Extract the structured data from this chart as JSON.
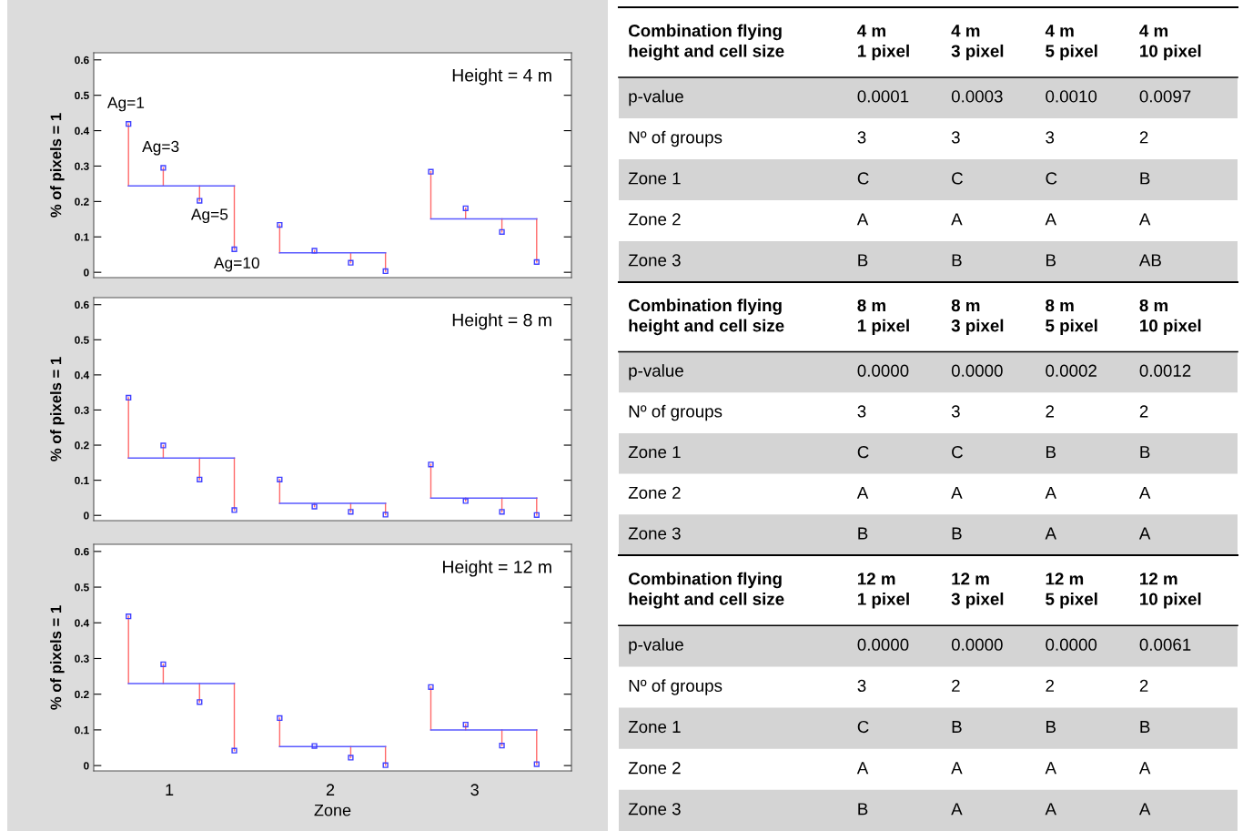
{
  "chart_data": [
    {
      "type": "line",
      "ylabel": "% of pixels = 1",
      "xlim": [
        0.42,
        3.58
      ],
      "ylim": [
        -0.015,
        0.62
      ],
      "yticks": [
        0,
        0.1,
        0.2,
        0.3,
        0.4,
        0.5,
        0.6
      ],
      "tick_labels": "y",
      "grid": false,
      "legend": false,
      "annotations": [
        "Height = 4 m",
        {
          "text": "Ag=1",
          "x": 0.65,
          "y": 0.419
        },
        {
          "text": "Ag=3",
          "x": 0.88,
          "y": 0.295
        },
        {
          "text": "Ag=5",
          "x": 1.12,
          "y": 0.202
        },
        {
          "text": "Ag=10",
          "x": 1.35,
          "y": 0.065
        }
      ],
      "series": [
        {
          "type": "line",
          "color": "#5a5aff",
          "x": [
            0.65,
            1.35,
            1.5,
            1.65,
            2.35,
            2.5,
            2.65,
            3.35
          ],
          "values": [
            0.244,
            0.244,
            null,
            0.055,
            0.055,
            null,
            0.151,
            0.151
          ]
        },
        {
          "type": "lollipop",
          "color": "#ff6a6a",
          "marker": "square",
          "colors": [
            "#4040ff",
            "#4040ff",
            "#4040ff",
            "#4040ff",
            "#4040ff",
            "#4040ff",
            "#4040ff",
            "#4040ff",
            "#4040ff",
            "#4040ff",
            "#4040ff",
            "#4040ff"
          ],
          "x": [
            0.65,
            0.88,
            1.12,
            1.35,
            1.65,
            1.88,
            2.12,
            2.35,
            2.65,
            2.88,
            3.12,
            3.35
          ],
          "values": [
            0.419,
            0.295,
            0.202,
            0.065,
            0.134,
            0.061,
            0.027,
            0.003,
            0.284,
            0.181,
            0.114,
            0.029
          ],
          "errors": [
            [
              0.244,
              0.419
            ],
            [
              0.244,
              0.295
            ],
            [
              0.202,
              0.244
            ],
            [
              0.065,
              0.244
            ],
            [
              0.055,
              0.134
            ],
            [
              0.055,
              0.061
            ],
            [
              0.027,
              0.055
            ],
            [
              0.003,
              0.055
            ],
            [
              0.151,
              0.284
            ],
            [
              0.151,
              0.181
            ],
            [
              0.114,
              0.151
            ],
            [
              0.029,
              0.151
            ]
          ]
        }
      ]
    },
    {
      "type": "line",
      "ylabel": "% of pixels = 1",
      "xlim": [
        0.42,
        3.58
      ],
      "ylim": [
        -0.015,
        0.62
      ],
      "yticks": [
        0,
        0.1,
        0.2,
        0.3,
        0.4,
        0.5,
        0.6
      ],
      "tick_labels": "y",
      "grid": false,
      "legend": false,
      "annotations": [
        "Height = 8 m"
      ],
      "series": [
        {
          "type": "line",
          "color": "#5a5aff",
          "x": [
            0.65,
            1.35,
            1.5,
            1.65,
            2.35,
            2.5,
            2.65,
            3.35
          ],
          "values": [
            0.163,
            0.163,
            null,
            0.034,
            0.034,
            null,
            0.049,
            0.049
          ]
        },
        {
          "type": "lollipop",
          "color": "#ff6a6a",
          "marker": "square",
          "colors": [
            "#4040ff",
            "#4040ff",
            "#4040ff",
            "#4040ff",
            "#4040ff",
            "#4040ff",
            "#4040ff",
            "#4040ff",
            "#4040ff",
            "#4040ff",
            "#4040ff",
            "#4040ff"
          ],
          "x": [
            0.65,
            0.88,
            1.12,
            1.35,
            1.65,
            1.88,
            2.12,
            2.35,
            2.65,
            2.88,
            3.12,
            3.35
          ],
          "values": [
            0.335,
            0.199,
            0.102,
            0.015,
            0.102,
            0.025,
            0.01,
            0.002,
            0.145,
            0.041,
            0.01,
            0.001
          ],
          "errors": [
            [
              0.163,
              0.335
            ],
            [
              0.163,
              0.199
            ],
            [
              0.102,
              0.163
            ],
            [
              0.015,
              0.163
            ],
            [
              0.034,
              0.102
            ],
            [
              0.025,
              0.034
            ],
            [
              0.01,
              0.034
            ],
            [
              0.002,
              0.034
            ],
            [
              0.049,
              0.145
            ],
            [
              0.041,
              0.049
            ],
            [
              0.01,
              0.049
            ],
            [
              0.001,
              0.049
            ]
          ]
        }
      ]
    },
    {
      "type": "line",
      "xlabel": "Zone",
      "ylabel": "% of pixels = 1",
      "xlim": [
        0.42,
        3.58
      ],
      "xticks": [
        {
          "value": 0.92,
          "label": "1"
        },
        {
          "value": 1.985,
          "label": "2"
        },
        {
          "value": 2.94,
          "label": "3"
        }
      ],
      "ylim": [
        -0.015,
        0.62
      ],
      "yticks": [
        0,
        0.1,
        0.2,
        0.3,
        0.4,
        0.5,
        0.6
      ],
      "grid": false,
      "legend": false,
      "annotations": [
        "Height = 12 m"
      ],
      "series": [
        {
          "type": "line",
          "color": "#5a5aff",
          "x": [
            0.65,
            1.35,
            1.5,
            1.65,
            2.35,
            2.5,
            2.65,
            3.35
          ],
          "values": [
            0.23,
            0.23,
            null,
            0.053,
            0.053,
            null,
            0.1,
            0.1
          ]
        },
        {
          "type": "lollipop",
          "color": "#ff6a6a",
          "marker": "square",
          "colors": [
            "#4040ff",
            "#4040ff",
            "#4040ff",
            "#4040ff",
            "#4040ff",
            "#4040ff",
            "#4040ff",
            "#4040ff",
            "#4040ff",
            "#4040ff",
            "#4040ff",
            "#4040ff"
          ],
          "x": [
            0.65,
            0.88,
            1.12,
            1.35,
            1.65,
            1.88,
            2.12,
            2.35,
            2.65,
            2.88,
            3.12,
            3.35
          ],
          "values": [
            0.418,
            0.284,
            0.178,
            0.042,
            0.133,
            0.055,
            0.022,
            0.001,
            0.22,
            0.115,
            0.056,
            0.004
          ],
          "errors": [
            [
              0.23,
              0.418
            ],
            [
              0.23,
              0.284
            ],
            [
              0.178,
              0.23
            ],
            [
              0.042,
              0.23
            ],
            [
              0.053,
              0.133
            ],
            null,
            [
              0.022,
              0.053
            ],
            [
              0.001,
              0.053
            ],
            [
              0.1,
              0.22
            ],
            [
              0.1,
              0.115
            ],
            [
              0.056,
              0.1
            ],
            [
              0.004,
              0.1
            ]
          ]
        }
      ]
    },
    {
      "type": "other",
      "categories": [
        "Combination flying\nheight and cell size",
        "4 m\n1 pixel",
        "4 m\n3 pixel",
        "4 m\n5 pixel",
        "4 m\n10 pixel"
      ],
      "y_categories": [
        "p-value",
        "Nº of groups",
        "Zone 1",
        "Zone 2",
        "Zone 3"
      ],
      "cell_labels": [
        [
          "0.0001",
          "0.0003",
          "0.0010",
          "0.0097"
        ],
        [
          "3",
          "3",
          "3",
          "2"
        ],
        [
          "C",
          "C",
          "C",
          "B"
        ],
        [
          "A",
          "A",
          "A",
          "A"
        ],
        [
          "B",
          "B",
          "B",
          "AB"
        ]
      ]
    },
    {
      "type": "other",
      "categories": [
        "Combination flying\nheight and cell size",
        "8 m\n1 pixel",
        "8 m\n3 pixel",
        "8 m\n5 pixel",
        "8 m\n10 pixel"
      ],
      "y_categories": [
        "p-value",
        "Nº of groups",
        "Zone 1",
        "Zone 2",
        "Zone 3"
      ],
      "cell_labels": [
        [
          "0.0000",
          "0.0000",
          "0.0002",
          "0.0012"
        ],
        [
          "3",
          "3",
          "2",
          "2"
        ],
        [
          "C",
          "C",
          "B",
          "B"
        ],
        [
          "A",
          "A",
          "A",
          "A"
        ],
        [
          "B",
          "B",
          "A",
          "A"
        ]
      ]
    },
    {
      "type": "other",
      "categories": [
        "Combination flying\nheight and cell size",
        "12 m\n1 pixel",
        "12 m\n3 pixel",
        "12 m\n5 pixel",
        "12 m\n10 pixel"
      ],
      "y_categories": [
        "p-value",
        "Nº of groups",
        "Zone 1",
        "Zone 2",
        "Zone 3"
      ],
      "cell_labels": [
        [
          "0.0000",
          "0.0000",
          "0.0000",
          "0.0061"
        ],
        [
          "3",
          "2",
          "2",
          "2"
        ],
        [
          "C",
          "B",
          "B",
          "B"
        ],
        [
          "A",
          "A",
          "A",
          "A"
        ],
        [
          "B",
          "A",
          "A",
          "A"
        ]
      ]
    }
  ]
}
